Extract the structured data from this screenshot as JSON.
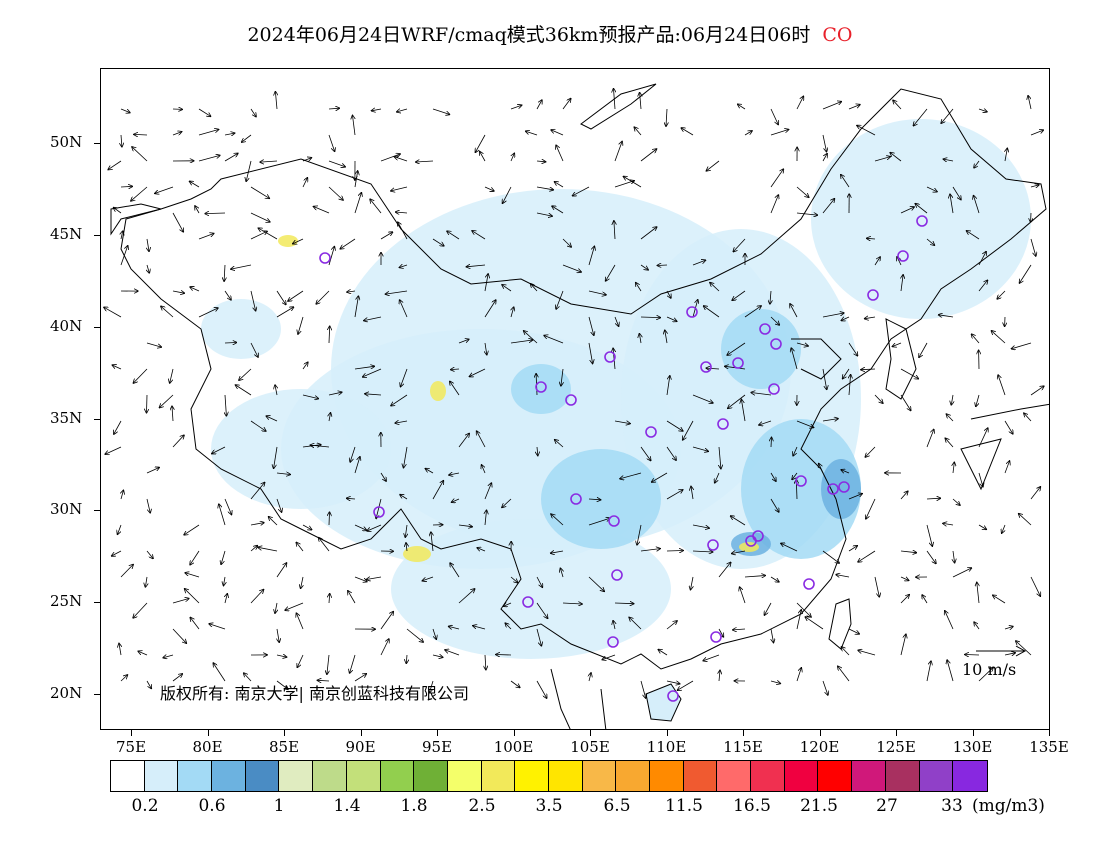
{
  "title": {
    "main": "2024年06月24日WRF/cmaq模式36km预报产品:06月24日06时",
    "pollutant": "CO",
    "pollutant_color": "#e8202a"
  },
  "axes": {
    "lat_labels": [
      "50N",
      "45N",
      "40N",
      "35N",
      "30N",
      "25N",
      "20N"
    ],
    "lon_labels": [
      "75E",
      "80E",
      "85E",
      "90E",
      "95E",
      "100E",
      "105E",
      "110E",
      "115E",
      "120E",
      "125E",
      "130E",
      "135E"
    ]
  },
  "copyright": "版权所有: 南京大学| 南京创蓝科技有限公司",
  "wind_reference": {
    "label": "10 m/s"
  },
  "colorbar": {
    "colors": [
      "#ffffff",
      "#d6eefa",
      "#a3daf5",
      "#6cb2e0",
      "#4a8cc4",
      "#e0ecc0",
      "#bedb8a",
      "#c3e07a",
      "#92cf4e",
      "#6fb036",
      "#f4ff6a",
      "#f2e95a",
      "#fff200",
      "#ffe500",
      "#f8b848",
      "#f8a830",
      "#ff8a00",
      "#f05a30",
      "#ff6a6a",
      "#f03050",
      "#f00040",
      "#ff0000",
      "#d0187a",
      "#a83060",
      "#9040c8",
      "#8828e0"
    ],
    "labels": [
      "0.2",
      "0.6",
      "1",
      "1.4",
      "1.8",
      "2.5",
      "3.5",
      "6.5",
      "11.5",
      "16.5",
      "21.5",
      "27",
      "33"
    ],
    "unit": "(mg/m3)"
  },
  "colors": {
    "low_concentration": "#d6eefa",
    "medium_concentration": "#a3daf5",
    "high_concentration": "#6cb2e0",
    "hotspot": "#f2e95a",
    "station_marker": "#8a2be2"
  }
}
